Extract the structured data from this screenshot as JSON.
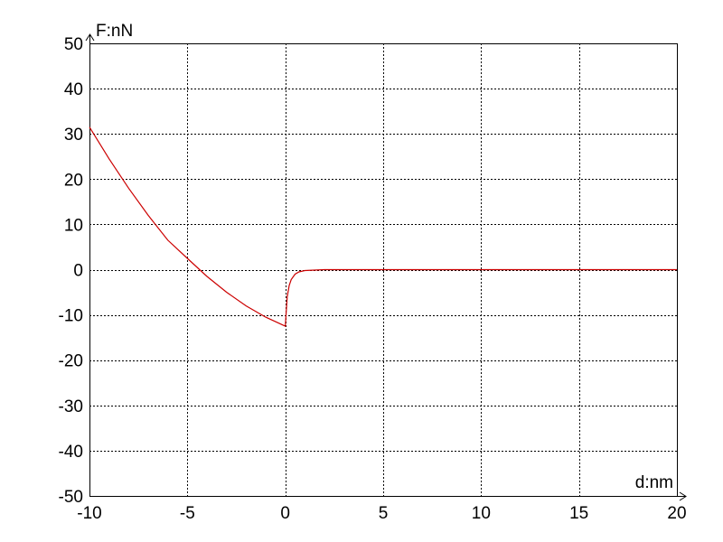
{
  "chart_data": {
    "type": "line",
    "title": "",
    "xlabel": "d:nm",
    "ylabel": "F:nN",
    "xlim": [
      -10,
      20
    ],
    "ylim": [
      -50,
      50
    ],
    "xticks": [
      -10,
      -5,
      0,
      5,
      10,
      15,
      20
    ],
    "yticks": [
      -50,
      -40,
      -30,
      -20,
      -10,
      0,
      10,
      20,
      30,
      40,
      50
    ],
    "grid": true,
    "series": [
      {
        "color": "#cc0000",
        "x": [
          -10,
          -9,
          -8,
          -7,
          -6,
          -5,
          -4,
          -3,
          -2,
          -1,
          0,
          0.05,
          0.1,
          0.2,
          0.3,
          0.5,
          0.7,
          1.0,
          1.5,
          2,
          5,
          10,
          15,
          20
        ],
        "y": [
          31.5,
          24.5,
          18.0,
          12.0,
          6.5,
          2.5,
          -1.5,
          -5.0,
          -8.0,
          -10.5,
          -12.5,
          -9.0,
          -6.0,
          -3.5,
          -2.2,
          -1.0,
          -0.5,
          -0.2,
          -0.1,
          0,
          0,
          0,
          0,
          0
        ]
      }
    ]
  }
}
